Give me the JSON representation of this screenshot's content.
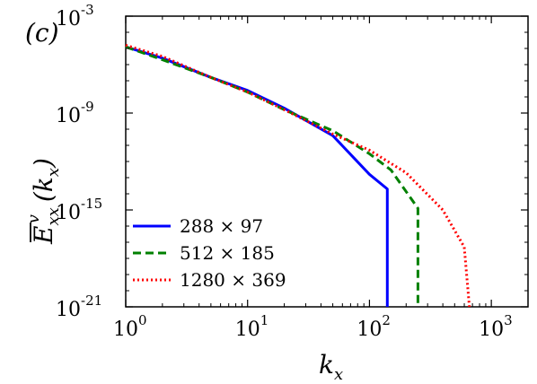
{
  "chart_data": {
    "type": "line",
    "panel_label": "(c)",
    "xlabel": {
      "base": "k",
      "sub": "x"
    },
    "ylabel": {
      "bar": "E",
      "sub": "xx",
      "sup": "v",
      "arg": "(k",
      "arg_sub": "x",
      "arg_close": ")"
    },
    "xscale": "log",
    "yscale": "log",
    "xlim": [
      1,
      2000
    ],
    "ylim": [
      1e-21,
      0.001
    ],
    "x_ticks": [
      {
        "value": 1,
        "base": "10",
        "exp": "0"
      },
      {
        "value": 10,
        "base": "10",
        "exp": "1"
      },
      {
        "value": 100,
        "base": "10",
        "exp": "2"
      },
      {
        "value": 1000,
        "base": "10",
        "exp": "3"
      }
    ],
    "y_ticks": [
      {
        "value": 1e-21,
        "base": "10",
        "exp": "-21"
      },
      {
        "value": 1e-15,
        "base": "10",
        "exp": "-15"
      },
      {
        "value": 1e-09,
        "base": "10",
        "exp": "-9"
      },
      {
        "value": 0.001,
        "base": "10",
        "exp": "-3"
      }
    ],
    "grid": false,
    "legend": {
      "placement": "bottom-left"
    },
    "series": [
      {
        "name": "288 × 97",
        "color": "#0000ff",
        "style": "solid",
        "points": [
          [
            1,
            1.26e-05
          ],
          [
            2,
            2.5e-06
          ],
          [
            5,
            1.6e-07
          ],
          [
            10,
            2.5e-08
          ],
          [
            20,
            2e-09
          ],
          [
            50,
            4e-11
          ],
          [
            100,
            1.6e-13
          ],
          [
            140,
            2e-14
          ],
          [
            140,
            1e-21
          ]
        ]
      },
      {
        "name": "512 × 185",
        "color": "#008000",
        "style": "dashed",
        "points": [
          [
            1,
            1.26e-05
          ],
          [
            2,
            2e-06
          ],
          [
            5,
            1.6e-07
          ],
          [
            10,
            2e-08
          ],
          [
            20,
            1.6e-09
          ],
          [
            50,
            8e-11
          ],
          [
            100,
            3e-12
          ],
          [
            150,
            3e-13
          ],
          [
            250,
            1.26e-15
          ],
          [
            250,
            1e-21
          ]
        ]
      },
      {
        "name": "1280 × 369",
        "color": "#ff0000",
        "style": "dotted",
        "points": [
          [
            1,
            1.58e-05
          ],
          [
            2,
            3.2e-06
          ],
          [
            5,
            1.6e-07
          ],
          [
            10,
            2e-08
          ],
          [
            20,
            1.6e-09
          ],
          [
            50,
            5e-11
          ],
          [
            100,
            5e-12
          ],
          [
            200,
            2e-13
          ],
          [
            400,
            1e-15
          ],
          [
            600,
            5e-18
          ],
          [
            660,
            1e-21
          ]
        ]
      }
    ]
  }
}
